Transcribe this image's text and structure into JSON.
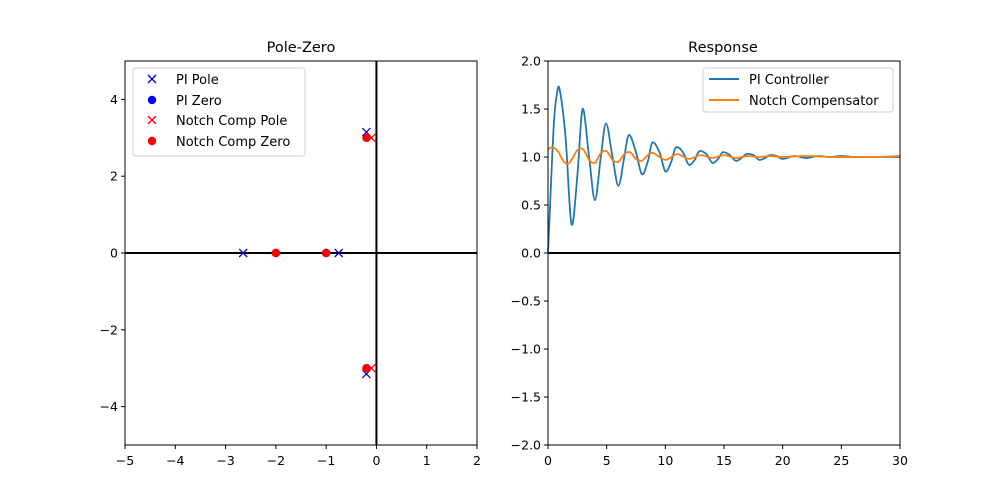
{
  "chart_data": [
    {
      "type": "scatter",
      "title": "Pole-Zero",
      "xlabel": "",
      "ylabel": "",
      "xlim": [
        -5,
        2
      ],
      "ylim": [
        -5,
        5
      ],
      "xticks": [
        -5,
        -4,
        -3,
        -2,
        -1,
        0,
        1,
        2
      ],
      "yticks": [
        -4,
        -2,
        0,
        2,
        4
      ],
      "xtick_labels": [
        "−5",
        "−4",
        "−3",
        "−2",
        "−1",
        "0",
        "1",
        "2"
      ],
      "ytick_labels": [
        "−4",
        "−2",
        "0",
        "2",
        "4"
      ],
      "grid": false,
      "axis_lines": true,
      "legend": "upper-left",
      "series": [
        {
          "name": "PI Pole",
          "marker": "x",
          "color": "#0000cc",
          "points": [
            [
              -2.65,
              0
            ],
            [
              -0.75,
              0
            ],
            [
              -0.2,
              3.15
            ],
            [
              -0.2,
              -3.15
            ]
          ]
        },
        {
          "name": "PI Zero",
          "marker": "o",
          "color": "#0000ff",
          "points": [
            [
              -2.0,
              0
            ],
            [
              -1.0,
              0
            ]
          ]
        },
        {
          "name": "Notch Comp Pole",
          "marker": "x",
          "color": "#ff0000",
          "points": [
            [
              -0.1,
              3.0
            ],
            [
              -0.1,
              -3.0
            ]
          ]
        },
        {
          "name": "Notch Comp Zero",
          "marker": "o",
          "color": "#ff0000",
          "points": [
            [
              -2.0,
              0
            ],
            [
              -1.0,
              0
            ],
            [
              -0.2,
              3.0
            ],
            [
              -0.2,
              -3.0
            ]
          ]
        }
      ]
    },
    {
      "type": "line",
      "title": "Response",
      "xlabel": "",
      "ylabel": "",
      "xlim": [
        0,
        30
      ],
      "ylim": [
        -2.0,
        2.0
      ],
      "xticks": [
        0,
        5,
        10,
        15,
        20,
        25,
        30
      ],
      "yticks": [
        -2.0,
        -1.5,
        -1.0,
        -0.5,
        0.0,
        0.5,
        1.0,
        1.5,
        2.0
      ],
      "xtick_labels": [
        "0",
        "5",
        "10",
        "15",
        "20",
        "25",
        "30"
      ],
      "ytick_labels": [
        "−2.0",
        "−1.5",
        "−1.0",
        "−0.5",
        "0.0",
        "0.5",
        "1.0",
        "1.5",
        "2.0"
      ],
      "grid": false,
      "axis_lines": true,
      "legend": "upper-right",
      "series": [
        {
          "name": "PI Controller",
          "color": "#1f77b4",
          "x": [
            0,
            0.25,
            0.5,
            0.75,
            1.0,
            1.5,
            2.0,
            2.5,
            2.95,
            3.5,
            4.0,
            4.5,
            4.95,
            5.5,
            6.0,
            6.5,
            6.9,
            7.5,
            8.0,
            8.5,
            8.9,
            9.5,
            10.0,
            10.5,
            10.9,
            11.5,
            12.0,
            12.5,
            12.9,
            13.5,
            14.0,
            14.5,
            14.9,
            15.5,
            16.0,
            16.5,
            16.9,
            17.5,
            18.0,
            18.5,
            18.9,
            19.5,
            20.0,
            21.0,
            22.0,
            23.0,
            24.0,
            25.0,
            26.0,
            27.0,
            28.0,
            29.0,
            30.0
          ],
          "y": [
            0,
            0.7,
            1.35,
            1.65,
            1.7,
            1.2,
            0.3,
            0.8,
            1.5,
            1.0,
            0.55,
            1.0,
            1.35,
            1.0,
            0.7,
            1.0,
            1.23,
            1.05,
            0.82,
            0.95,
            1.15,
            1.05,
            0.85,
            0.95,
            1.1,
            1.05,
            0.92,
            0.97,
            1.06,
            1.03,
            0.94,
            0.98,
            1.05,
            1.02,
            0.96,
            0.99,
            1.03,
            1.02,
            0.97,
            0.99,
            1.02,
            1.01,
            0.98,
            1.01,
            0.99,
            1.01,
            1.0,
            1.01,
            1.0,
            1.0,
            1.0,
            1.0,
            1.0
          ]
        },
        {
          "name": "Notch Compensator",
          "color": "#ff7f0e",
          "x": [
            0,
            0.3,
            0.6,
            0.9,
            1.3,
            1.7,
            2.0,
            2.5,
            3.0,
            3.5,
            4.0,
            4.5,
            5.0,
            5.5,
            6.0,
            6.5,
            7.0,
            7.5,
            8.0,
            8.5,
            9.0,
            10.0,
            11.0,
            12.0,
            13.0,
            14.0,
            15.0,
            16.0,
            17.0,
            18.0,
            19.0,
            20.0,
            22.0,
            24.0,
            26.0,
            28.0,
            30.0
          ],
          "y": [
            1.08,
            1.1,
            1.09,
            1.05,
            0.96,
            0.93,
            0.97,
            1.07,
            1.08,
            0.97,
            0.94,
            1.04,
            1.06,
            0.97,
            0.95,
            1.03,
            1.05,
            0.98,
            0.96,
            1.02,
            1.04,
            0.97,
            1.03,
            0.98,
            1.02,
            0.99,
            1.02,
            0.99,
            1.01,
            1.0,
            1.01,
            1.0,
            1.01,
            1.0,
            1.0,
            1.0,
            1.01
          ]
        }
      ]
    }
  ]
}
